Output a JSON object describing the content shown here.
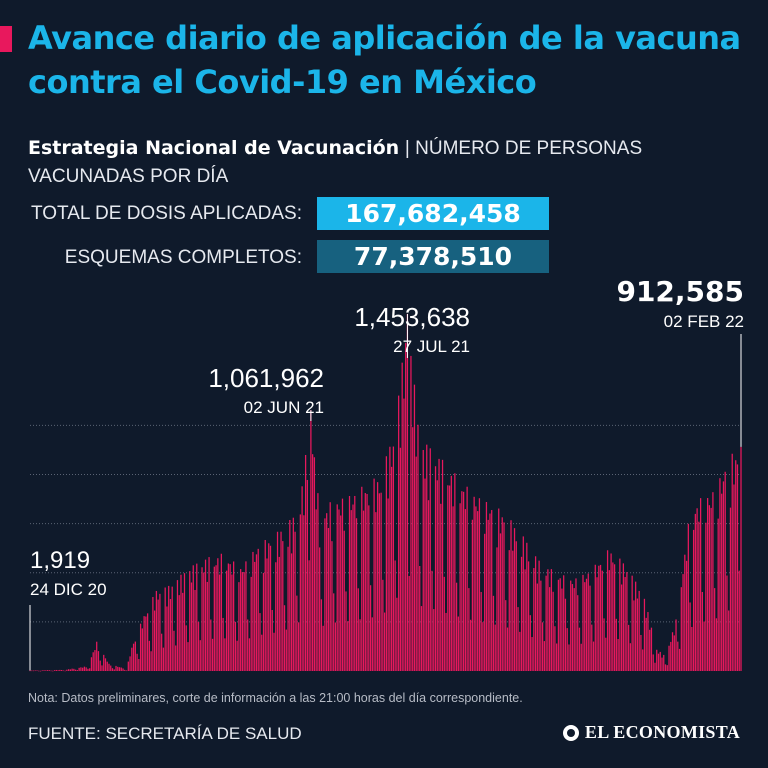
{
  "header": {
    "title": "Avance diario de aplicación de la vacuna contra el Covid-19 en México",
    "subtitle_strong": "Estrategia Nacional de Vacunación",
    "subtitle_rest": "| NÚMERO DE PERSONAS VACUNADAS POR DÍA"
  },
  "stats": {
    "total_label": "TOTAL DE DOSIS APLICADAS:",
    "total_value": "167,682,458",
    "complete_label": "ESQUEMAS COMPLETOS:",
    "complete_value": "77,378,510"
  },
  "colors": {
    "background": "#0f1a2b",
    "bar": "#e8185d",
    "accent_cyan": "#1bb5e9",
    "accent_dark": "#17617f",
    "grid": "#5a6374"
  },
  "chart_data": {
    "type": "bar",
    "x_start": "24 DIC 20",
    "x_end": "02 FEB 22",
    "ylim": [
      0,
      1600000
    ],
    "grid": true,
    "annotations": [
      {
        "value": 1919,
        "value_label": "1,919",
        "date": "24 DIC 20",
        "index": 0
      },
      {
        "value": 1061962,
        "value_label": "1,061,962",
        "date": "02 JUN 21",
        "index": 160
      },
      {
        "value": 1453638,
        "value_label": "1,453,638",
        "date": "27 JUL 21",
        "index": 215
      },
      {
        "value": 912585,
        "value_label": "912,585",
        "date": "02 FEB 22",
        "index": 405
      }
    ],
    "envelope": [
      [
        0,
        1919
      ],
      [
        20,
        5000
      ],
      [
        33,
        20000
      ],
      [
        38,
        120000
      ],
      [
        45,
        30000
      ],
      [
        55,
        8000
      ],
      [
        58,
        100000
      ],
      [
        65,
        230000
      ],
      [
        72,
        330000
      ],
      [
        80,
        350000
      ],
      [
        90,
        420000
      ],
      [
        100,
        460000
      ],
      [
        110,
        480000
      ],
      [
        120,
        430000
      ],
      [
        130,
        520000
      ],
      [
        140,
        560000
      ],
      [
        150,
        630000
      ],
      [
        155,
        760000
      ],
      [
        160,
        1061962
      ],
      [
        165,
        640000
      ],
      [
        172,
        700000
      ],
      [
        180,
        720000
      ],
      [
        190,
        760000
      ],
      [
        200,
        800000
      ],
      [
        208,
        1000000
      ],
      [
        215,
        1453638
      ],
      [
        222,
        950000
      ],
      [
        230,
        900000
      ],
      [
        240,
        820000
      ],
      [
        250,
        750000
      ],
      [
        260,
        700000
      ],
      [
        270,
        650000
      ],
      [
        280,
        560000
      ],
      [
        290,
        450000
      ],
      [
        300,
        400000
      ],
      [
        310,
        380000
      ],
      [
        320,
        420000
      ],
      [
        330,
        500000
      ],
      [
        340,
        430000
      ],
      [
        350,
        300000
      ],
      [
        357,
        90000
      ],
      [
        362,
        60000
      ],
      [
        368,
        210000
      ],
      [
        375,
        600000
      ],
      [
        380,
        700000
      ],
      [
        390,
        750000
      ],
      [
        398,
        880000
      ],
      [
        405,
        912585
      ]
    ]
  },
  "footer": {
    "note": "Nota: Datos preliminares, corte de información a las 21:00 horas del día correspondiente.",
    "source": "FUENTE: SECRETARÍA DE SALUD",
    "logo_text": "EL ECONOMISTA",
    "logo_icon": "el-economista-logo-icon"
  }
}
